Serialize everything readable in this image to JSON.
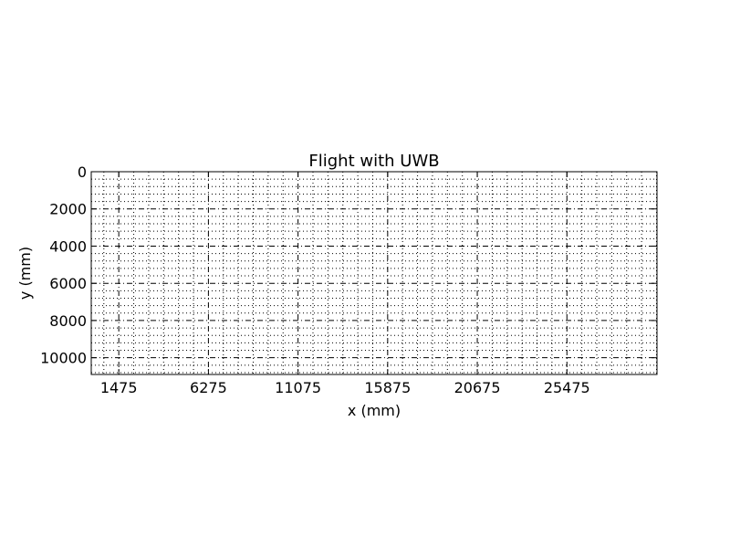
{
  "chart_data": {
    "type": "scatter",
    "title": "Flight with UWB",
    "xlabel": "x (mm)",
    "ylabel": "y (mm)",
    "xlim": [
      0,
      30300
    ],
    "ylim": [
      10900,
      0
    ],
    "y_inverted": true,
    "x_ticks": [
      1475,
      6275,
      11075,
      15875,
      20675,
      25475
    ],
    "x_tick_labels": [
      "1475",
      "6275",
      "11075",
      "15875",
      "20675",
      "25475"
    ],
    "y_ticks": [
      0,
      2000,
      4000,
      6000,
      8000,
      10000
    ],
    "y_tick_labels": [
      "0",
      "2000",
      "4000",
      "6000",
      "8000",
      "10000"
    ],
    "major_grid": true,
    "minor_grid": true,
    "minor_grid_step_x": 800,
    "minor_grid_step_y": 400,
    "series": []
  },
  "colors": {
    "background": "#ffffff",
    "axes": "#000000",
    "grid": "#000000"
  }
}
